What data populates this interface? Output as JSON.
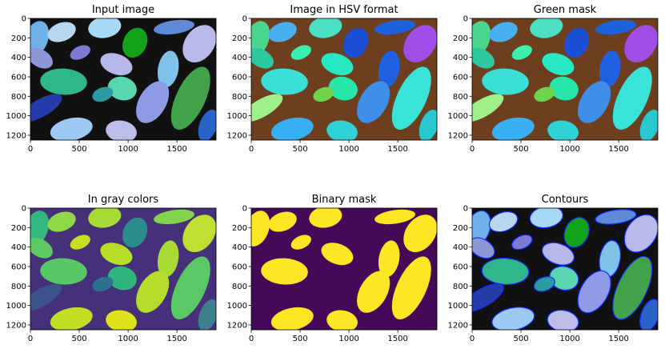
{
  "figure": {
    "background": "#ffffff"
  },
  "chart_data": [
    {
      "type": "heatmap",
      "title": "Input image",
      "xlim": [
        0,
        1900
      ],
      "ylim": [
        1250,
        0
      ],
      "xticks": [
        0,
        500,
        1000,
        1500
      ],
      "yticks": [
        0,
        200,
        400,
        600,
        800,
        1000,
        1200
      ],
      "background_color": "#111111",
      "leaves": [
        {
          "x": 60,
          "y": 210,
          "rx": 120,
          "ry": 190,
          "angle": 20,
          "color": "#6fb1e8"
        },
        {
          "x": 320,
          "y": 140,
          "rx": 150,
          "ry": 95,
          "angle": -20,
          "color": "#b7d7ef"
        },
        {
          "x": 760,
          "y": 90,
          "rx": 170,
          "ry": 110,
          "angle": -10,
          "color": "#a7d8f5"
        },
        {
          "x": 1070,
          "y": 250,
          "rx": 120,
          "ry": 160,
          "angle": 25,
          "color": "#13a31a"
        },
        {
          "x": 1470,
          "y": 90,
          "rx": 210,
          "ry": 70,
          "angle": -8,
          "color": "#5f8ad8"
        },
        {
          "x": 1730,
          "y": 260,
          "rx": 150,
          "ry": 210,
          "angle": 35,
          "color": "#b8bbe9"
        },
        {
          "x": 100,
          "y": 410,
          "rx": 90,
          "ry": 140,
          "angle": -60,
          "color": "#8c97d5"
        },
        {
          "x": 510,
          "y": 350,
          "rx": 110,
          "ry": 65,
          "angle": -25,
          "color": "#7e7ad4"
        },
        {
          "x": 880,
          "y": 470,
          "rx": 170,
          "ry": 105,
          "angle": 20,
          "color": "#b5b8e9"
        },
        {
          "x": 1410,
          "y": 520,
          "rx": 105,
          "ry": 190,
          "angle": 10,
          "color": "#7fc3ea"
        },
        {
          "x": 340,
          "y": 650,
          "rx": 240,
          "ry": 135,
          "angle": 3,
          "color": "#2fb68a"
        },
        {
          "x": 940,
          "y": 720,
          "rx": 150,
          "ry": 120,
          "angle": 15,
          "color": "#59d5b0"
        },
        {
          "x": 1250,
          "y": 860,
          "rx": 140,
          "ry": 235,
          "angle": 30,
          "color": "#8c9be3"
        },
        {
          "x": 1640,
          "y": 820,
          "rx": 150,
          "ry": 350,
          "angle": 25,
          "color": "#42a24b"
        },
        {
          "x": 110,
          "y": 920,
          "rx": 90,
          "ry": 240,
          "angle": 60,
          "color": "#243ca8"
        },
        {
          "x": 740,
          "y": 780,
          "rx": 110,
          "ry": 70,
          "angle": -20,
          "color": "#2b9ba3"
        },
        {
          "x": 420,
          "y": 1140,
          "rx": 220,
          "ry": 115,
          "angle": -12,
          "color": "#9ccaf4"
        },
        {
          "x": 930,
          "y": 1160,
          "rx": 160,
          "ry": 110,
          "angle": 10,
          "color": "#bcbde9"
        },
        {
          "x": 1820,
          "y": 1100,
          "rx": 90,
          "ry": 170,
          "angle": 20,
          "color": "#2a62c8"
        }
      ]
    },
    {
      "type": "heatmap",
      "title": "Image in HSV format",
      "xlim": [
        0,
        1900
      ],
      "ylim": [
        1250,
        0
      ],
      "xticks": [
        0,
        500,
        1000,
        1500
      ],
      "yticks": [
        0,
        200,
        400,
        600,
        800,
        1000,
        1200
      ],
      "background_color": "#6e3f1f",
      "leaves": [
        {
          "x": 60,
          "y": 210,
          "rx": 120,
          "ry": 190,
          "angle": 20,
          "color": "#4ad68e"
        },
        {
          "x": 320,
          "y": 140,
          "rx": 150,
          "ry": 95,
          "angle": -20,
          "color": "#49b0f0"
        },
        {
          "x": 760,
          "y": 90,
          "rx": 170,
          "ry": 110,
          "angle": -10,
          "color": "#4be0c4"
        },
        {
          "x": 1070,
          "y": 250,
          "rx": 120,
          "ry": 160,
          "angle": 25,
          "color": "#1b4fd6"
        },
        {
          "x": 1470,
          "y": 90,
          "rx": 210,
          "ry": 70,
          "angle": -8,
          "color": "#1f60dc"
        },
        {
          "x": 1730,
          "y": 260,
          "rx": 150,
          "ry": 210,
          "angle": 35,
          "color": "#a04ce6"
        },
        {
          "x": 100,
          "y": 410,
          "rx": 90,
          "ry": 140,
          "angle": -60,
          "color": "#2cc8a0"
        },
        {
          "x": 510,
          "y": 350,
          "rx": 110,
          "ry": 65,
          "angle": -25,
          "color": "#3aefb0"
        },
        {
          "x": 880,
          "y": 470,
          "rx": 170,
          "ry": 105,
          "angle": 20,
          "color": "#27e8c2"
        },
        {
          "x": 1410,
          "y": 520,
          "rx": 105,
          "ry": 190,
          "angle": 10,
          "color": "#2060e2"
        },
        {
          "x": 340,
          "y": 650,
          "rx": 240,
          "ry": 135,
          "angle": 3,
          "color": "#3adfd6"
        },
        {
          "x": 940,
          "y": 720,
          "rx": 150,
          "ry": 120,
          "angle": 15,
          "color": "#26e6a9"
        },
        {
          "x": 1250,
          "y": 860,
          "rx": 140,
          "ry": 235,
          "angle": 30,
          "color": "#3f8ee8"
        },
        {
          "x": 1640,
          "y": 820,
          "rx": 150,
          "ry": 350,
          "angle": 25,
          "color": "#3ae3d8"
        },
        {
          "x": 110,
          "y": 920,
          "rx": 90,
          "ry": 240,
          "angle": 60,
          "color": "#9ef08a"
        },
        {
          "x": 740,
          "y": 780,
          "rx": 110,
          "ry": 70,
          "angle": -20,
          "color": "#6fd34e"
        },
        {
          "x": 420,
          "y": 1140,
          "rx": 220,
          "ry": 115,
          "angle": -12,
          "color": "#36b0f2"
        },
        {
          "x": 930,
          "y": 1160,
          "rx": 160,
          "ry": 110,
          "angle": 10,
          "color": "#30d3d5"
        },
        {
          "x": 1820,
          "y": 1100,
          "rx": 90,
          "ry": 170,
          "angle": 20,
          "color": "#29c7d0"
        }
      ]
    },
    {
      "type": "heatmap",
      "title": "Green mask",
      "xlim": [
        0,
        1900
      ],
      "ylim": [
        1250,
        0
      ],
      "xticks": [
        0,
        500,
        1000,
        1500
      ],
      "yticks": [
        0,
        200,
        400,
        600,
        800,
        1000,
        1200
      ],
      "background_color": "#6e3f1f",
      "leaves": [
        {
          "x": 60,
          "y": 210,
          "rx": 120,
          "ry": 190,
          "angle": 20,
          "color": "#4ad68e"
        },
        {
          "x": 320,
          "y": 140,
          "rx": 150,
          "ry": 95,
          "angle": -20,
          "color": "#49b0f0"
        },
        {
          "x": 760,
          "y": 90,
          "rx": 170,
          "ry": 110,
          "angle": -10,
          "color": "#4be0c4"
        },
        {
          "x": 1070,
          "y": 250,
          "rx": 120,
          "ry": 160,
          "angle": 25,
          "color": "#1b4fd6"
        },
        {
          "x": 1470,
          "y": 90,
          "rx": 210,
          "ry": 70,
          "angle": -8,
          "color": "#1f60dc"
        },
        {
          "x": 1730,
          "y": 260,
          "rx": 150,
          "ry": 210,
          "angle": 35,
          "color": "#a04ce6"
        },
        {
          "x": 100,
          "y": 410,
          "rx": 90,
          "ry": 140,
          "angle": -60,
          "color": "#2cc8a0"
        },
        {
          "x": 510,
          "y": 350,
          "rx": 110,
          "ry": 65,
          "angle": -25,
          "color": "#3aefb0"
        },
        {
          "x": 880,
          "y": 470,
          "rx": 170,
          "ry": 105,
          "angle": 20,
          "color": "#27e8c2"
        },
        {
          "x": 1410,
          "y": 520,
          "rx": 105,
          "ry": 190,
          "angle": 10,
          "color": "#2060e2"
        },
        {
          "x": 340,
          "y": 650,
          "rx": 240,
          "ry": 135,
          "angle": 3,
          "color": "#3adfd6"
        },
        {
          "x": 940,
          "y": 720,
          "rx": 150,
          "ry": 120,
          "angle": 15,
          "color": "#26e6a9"
        },
        {
          "x": 1250,
          "y": 860,
          "rx": 140,
          "ry": 235,
          "angle": 30,
          "color": "#3f8ee8"
        },
        {
          "x": 1640,
          "y": 820,
          "rx": 150,
          "ry": 350,
          "angle": 25,
          "color": "#3ae3d8"
        },
        {
          "x": 110,
          "y": 920,
          "rx": 90,
          "ry": 240,
          "angle": 60,
          "color": "#9ef08a"
        },
        {
          "x": 740,
          "y": 780,
          "rx": 110,
          "ry": 70,
          "angle": -20,
          "color": "#6fd34e"
        },
        {
          "x": 420,
          "y": 1140,
          "rx": 220,
          "ry": 115,
          "angle": -12,
          "color": "#36b0f2"
        },
        {
          "x": 930,
          "y": 1160,
          "rx": 160,
          "ry": 110,
          "angle": 10,
          "color": "#30d3d5"
        },
        {
          "x": 1820,
          "y": 1100,
          "rx": 90,
          "ry": 170,
          "angle": 20,
          "color": "#29c7d0"
        }
      ]
    },
    {
      "type": "heatmap",
      "title": "In gray colors",
      "xlim": [
        0,
        1900
      ],
      "ylim": [
        1250,
        0
      ],
      "xticks": [
        0,
        500,
        1000,
        1500
      ],
      "yticks": [
        0,
        200,
        400,
        600,
        800,
        1000,
        1200
      ],
      "background_color": "#46307a",
      "leaves": [
        {
          "x": 60,
          "y": 210,
          "rx": 120,
          "ry": 190,
          "angle": 20,
          "color": "#34b77f"
        },
        {
          "x": 320,
          "y": 140,
          "rx": 150,
          "ry": 95,
          "angle": -20,
          "color": "#8fd84a"
        },
        {
          "x": 760,
          "y": 90,
          "rx": 170,
          "ry": 110,
          "angle": -10,
          "color": "#a7db35"
        },
        {
          "x": 1070,
          "y": 250,
          "rx": 120,
          "ry": 160,
          "angle": 25,
          "color": "#2a8c8b"
        },
        {
          "x": 1470,
          "y": 90,
          "rx": 210,
          "ry": 70,
          "angle": -8,
          "color": "#84d24d"
        },
        {
          "x": 1730,
          "y": 260,
          "rx": 150,
          "ry": 210,
          "angle": 35,
          "color": "#bfe033"
        },
        {
          "x": 100,
          "y": 410,
          "rx": 90,
          "ry": 140,
          "angle": -60,
          "color": "#5ec962"
        },
        {
          "x": 510,
          "y": 350,
          "rx": 110,
          "ry": 65,
          "angle": -25,
          "color": "#c5e021"
        },
        {
          "x": 880,
          "y": 470,
          "rx": 170,
          "ry": 105,
          "angle": 20,
          "color": "#b8de29"
        },
        {
          "x": 1410,
          "y": 520,
          "rx": 105,
          "ry": 190,
          "angle": 10,
          "color": "#a8db34"
        },
        {
          "x": 340,
          "y": 650,
          "rx": 240,
          "ry": 135,
          "angle": 3,
          "color": "#58c765"
        },
        {
          "x": 940,
          "y": 720,
          "rx": 150,
          "ry": 120,
          "angle": 15,
          "color": "#2fb47c"
        },
        {
          "x": 1250,
          "y": 860,
          "rx": 140,
          "ry": 235,
          "angle": 30,
          "color": "#b5de2b"
        },
        {
          "x": 1640,
          "y": 820,
          "rx": 150,
          "ry": 350,
          "angle": 25,
          "color": "#5ac864"
        },
        {
          "x": 110,
          "y": 920,
          "rx": 90,
          "ry": 240,
          "angle": 60,
          "color": "#3b528b"
        },
        {
          "x": 740,
          "y": 780,
          "rx": 110,
          "ry": 70,
          "angle": -20,
          "color": "#2c728e"
        },
        {
          "x": 420,
          "y": 1140,
          "rx": 220,
          "ry": 115,
          "angle": -12,
          "color": "#c2df23"
        },
        {
          "x": 930,
          "y": 1160,
          "rx": 160,
          "ry": 110,
          "angle": 10,
          "color": "#dde318"
        },
        {
          "x": 1820,
          "y": 1100,
          "rx": 90,
          "ry": 170,
          "angle": 20,
          "color": "#3f7f8d"
        }
      ]
    },
    {
      "type": "heatmap",
      "title": "Binary mask",
      "xlim": [
        0,
        1900
      ],
      "ylim": [
        1250,
        0
      ],
      "xticks": [
        0,
        500,
        1000,
        1500
      ],
      "yticks": [
        0,
        200,
        400,
        600,
        800,
        1000,
        1200
      ],
      "background_color": "#440a58",
      "leaves": [
        {
          "x": 60,
          "y": 210,
          "rx": 120,
          "ry": 190,
          "angle": 20,
          "color": "#fde725"
        },
        {
          "x": 320,
          "y": 140,
          "rx": 150,
          "ry": 95,
          "angle": -20,
          "color": "#fde725"
        },
        {
          "x": 760,
          "y": 90,
          "rx": 170,
          "ry": 110,
          "angle": -10,
          "color": "#fde725"
        },
        {
          "x": 1470,
          "y": 90,
          "rx": 210,
          "ry": 70,
          "angle": -8,
          "color": "#fde725"
        },
        {
          "x": 1730,
          "y": 260,
          "rx": 150,
          "ry": 210,
          "angle": 35,
          "color": "#fde725"
        },
        {
          "x": 510,
          "y": 350,
          "rx": 110,
          "ry": 65,
          "angle": -25,
          "color": "#fde725"
        },
        {
          "x": 880,
          "y": 470,
          "rx": 170,
          "ry": 105,
          "angle": 20,
          "color": "#fde725"
        },
        {
          "x": 1410,
          "y": 520,
          "rx": 105,
          "ry": 190,
          "angle": 10,
          "color": "#fde725"
        },
        {
          "x": 340,
          "y": 650,
          "rx": 240,
          "ry": 135,
          "angle": 3,
          "color": "#fde725"
        },
        {
          "x": 1250,
          "y": 860,
          "rx": 140,
          "ry": 235,
          "angle": 30,
          "color": "#fde725"
        },
        {
          "x": 1640,
          "y": 820,
          "rx": 150,
          "ry": 350,
          "angle": 25,
          "color": "#fde725"
        },
        {
          "x": 420,
          "y": 1140,
          "rx": 220,
          "ry": 115,
          "angle": -12,
          "color": "#fde725"
        },
        {
          "x": 930,
          "y": 1160,
          "rx": 160,
          "ry": 110,
          "angle": 10,
          "color": "#fde725"
        }
      ]
    },
    {
      "type": "heatmap",
      "title": "Contours",
      "xlim": [
        0,
        1900
      ],
      "ylim": [
        1250,
        0
      ],
      "xticks": [
        0,
        500,
        1000,
        1500
      ],
      "yticks": [
        0,
        200,
        400,
        600,
        800,
        1000,
        1200
      ],
      "background_color": "#111111",
      "contour_color": "#1428ff",
      "leaves": [
        {
          "x": 60,
          "y": 210,
          "rx": 120,
          "ry": 190,
          "angle": 20,
          "color": "#6fb1e8"
        },
        {
          "x": 320,
          "y": 140,
          "rx": 150,
          "ry": 95,
          "angle": -20,
          "color": "#b7d7ef"
        },
        {
          "x": 760,
          "y": 90,
          "rx": 170,
          "ry": 110,
          "angle": -10,
          "color": "#a7d8f5"
        },
        {
          "x": 1070,
          "y": 250,
          "rx": 120,
          "ry": 160,
          "angle": 25,
          "color": "#13a31a"
        },
        {
          "x": 1470,
          "y": 90,
          "rx": 210,
          "ry": 70,
          "angle": -8,
          "color": "#5f8ad8"
        },
        {
          "x": 1730,
          "y": 260,
          "rx": 150,
          "ry": 210,
          "angle": 35,
          "color": "#b8bbe9"
        },
        {
          "x": 100,
          "y": 410,
          "rx": 90,
          "ry": 140,
          "angle": -60,
          "color": "#8c97d5"
        },
        {
          "x": 510,
          "y": 350,
          "rx": 110,
          "ry": 65,
          "angle": -25,
          "color": "#7e7ad4"
        },
        {
          "x": 880,
          "y": 470,
          "rx": 170,
          "ry": 105,
          "angle": 20,
          "color": "#b5b8e9"
        },
        {
          "x": 1410,
          "y": 520,
          "rx": 105,
          "ry": 190,
          "angle": 10,
          "color": "#7fc3ea"
        },
        {
          "x": 340,
          "y": 650,
          "rx": 240,
          "ry": 135,
          "angle": 3,
          "color": "#2fb68a"
        },
        {
          "x": 940,
          "y": 720,
          "rx": 150,
          "ry": 120,
          "angle": 15,
          "color": "#59d5b0"
        },
        {
          "x": 1250,
          "y": 860,
          "rx": 140,
          "ry": 235,
          "angle": 30,
          "color": "#8c9be3"
        },
        {
          "x": 1640,
          "y": 820,
          "rx": 150,
          "ry": 350,
          "angle": 25,
          "color": "#42a24b"
        },
        {
          "x": 110,
          "y": 920,
          "rx": 90,
          "ry": 240,
          "angle": 60,
          "color": "#243ca8"
        },
        {
          "x": 740,
          "y": 780,
          "rx": 110,
          "ry": 70,
          "angle": -20,
          "color": "#2b9ba3"
        },
        {
          "x": 420,
          "y": 1140,
          "rx": 220,
          "ry": 115,
          "angle": -12,
          "color": "#9ccaf4"
        },
        {
          "x": 930,
          "y": 1160,
          "rx": 160,
          "ry": 110,
          "angle": 10,
          "color": "#bcbde9"
        },
        {
          "x": 1820,
          "y": 1100,
          "rx": 90,
          "ry": 170,
          "angle": 20,
          "color": "#2a62c8"
        }
      ]
    }
  ]
}
